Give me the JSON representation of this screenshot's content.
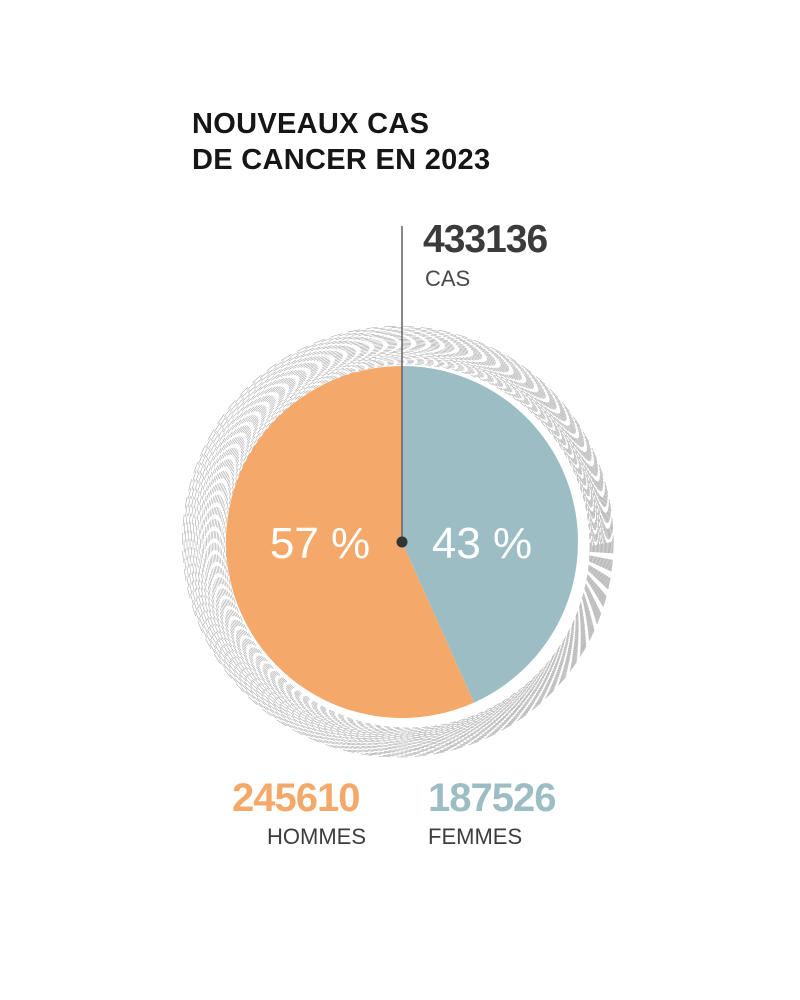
{
  "title": {
    "line1": "NOUVEAUX CAS",
    "line2": "DE CANCER EN 2023"
  },
  "total": {
    "value": "433136",
    "label": "CAS"
  },
  "colors": {
    "hommes": "#f4a96a",
    "femmes": "#9dbdc5",
    "hatch": "#8a8a8a",
    "pointer": "#6a6a6a"
  },
  "chart_data": {
    "type": "pie",
    "title": "NOUVEAUX CAS DE CANCER EN 2023",
    "slices": [
      {
        "label": "HOMMES",
        "value": 245610,
        "percent": 57,
        "percent_label": "57 %"
      },
      {
        "label": "FEMMES",
        "value": 187526,
        "percent": 43,
        "percent_label": "43 %"
      }
    ]
  },
  "legend": [
    {
      "value": "245610",
      "label": "HOMMES"
    },
    {
      "value": "187526",
      "label": "FEMMES"
    }
  ]
}
